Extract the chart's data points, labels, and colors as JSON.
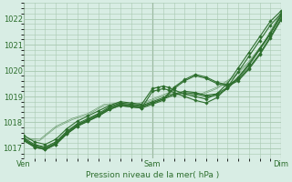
{
  "xlabel": "Pression niveau de la mer( hPa )",
  "bg_color": "#d8ede4",
  "grid_color": "#a8c8b0",
  "line_color": "#2d6e2d",
  "xlim": [
    0,
    48
  ],
  "ylim": [
    1016.6,
    1022.6
  ],
  "yticks": [
    1017,
    1018,
    1019,
    1020,
    1021,
    1022
  ],
  "xtick_labels": [
    "Ven",
    "Sam",
    "Dim"
  ],
  "xtick_positions": [
    0,
    24,
    48
  ],
  "series": [
    {
      "x": [
        0,
        2,
        4,
        6,
        8,
        10,
        12,
        14,
        16,
        18,
        20,
        22,
        24,
        26,
        28,
        30,
        32,
        34,
        36,
        38,
        40,
        42,
        44,
        46,
        48
      ],
      "y": [
        1017.35,
        1017.1,
        1017.0,
        1017.2,
        1017.6,
        1017.9,
        1018.1,
        1018.3,
        1018.55,
        1018.7,
        1018.65,
        1018.6,
        1018.75,
        1018.9,
        1019.05,
        1019.15,
        1019.1,
        1019.0,
        1019.05,
        1019.3,
        1019.7,
        1020.2,
        1020.8,
        1021.4,
        1022.1
      ],
      "lw": 0.8,
      "marker": true
    },
    {
      "x": [
        0,
        2,
        4,
        6,
        8,
        10,
        12,
        14,
        16,
        18,
        20,
        22,
        24,
        26,
        28,
        30,
        32,
        34,
        36,
        38,
        40,
        42,
        44,
        46,
        48
      ],
      "y": [
        1017.4,
        1017.15,
        1017.05,
        1017.25,
        1017.65,
        1017.95,
        1018.15,
        1018.35,
        1018.6,
        1018.75,
        1018.7,
        1018.65,
        1018.8,
        1018.95,
        1019.1,
        1019.2,
        1019.15,
        1019.05,
        1019.1,
        1019.35,
        1019.75,
        1020.25,
        1020.85,
        1021.45,
        1022.15
      ],
      "lw": 0.8,
      "marker": true
    },
    {
      "x": [
        0,
        2,
        4,
        6,
        8,
        10,
        12,
        14,
        16,
        18,
        20,
        22,
        24,
        25,
        26,
        27,
        28,
        30,
        32,
        34,
        36,
        38,
        40,
        42,
        44,
        46,
        48
      ],
      "y": [
        1017.5,
        1017.25,
        1017.15,
        1017.35,
        1017.75,
        1018.05,
        1018.25,
        1018.45,
        1018.65,
        1018.8,
        1018.75,
        1018.7,
        1019.3,
        1019.35,
        1019.4,
        1019.35,
        1019.25,
        1019.1,
        1019.0,
        1018.9,
        1019.1,
        1019.5,
        1020.1,
        1020.7,
        1021.3,
        1021.9,
        1022.3
      ],
      "lw": 0.8,
      "marker": true
    },
    {
      "x": [
        0,
        2,
        4,
        6,
        8,
        10,
        12,
        14,
        16,
        18,
        20,
        22,
        24,
        25,
        26,
        27,
        28,
        30,
        32,
        34,
        36,
        38,
        40,
        42,
        44,
        46,
        48
      ],
      "y": [
        1017.3,
        1017.05,
        1016.95,
        1017.15,
        1017.55,
        1017.85,
        1018.05,
        1018.25,
        1018.5,
        1018.65,
        1018.6,
        1018.55,
        1019.2,
        1019.25,
        1019.3,
        1019.25,
        1019.15,
        1019.0,
        1018.85,
        1018.75,
        1018.95,
        1019.35,
        1019.95,
        1020.55,
        1021.15,
        1021.75,
        1022.2
      ],
      "lw": 0.8,
      "marker": true
    },
    {
      "x": [
        0,
        3,
        6,
        9,
        12,
        15,
        18,
        21,
        24,
        27,
        30,
        33,
        36,
        39,
        42,
        45,
        48
      ],
      "y": [
        1017.35,
        1017.3,
        1017.8,
        1018.1,
        1018.3,
        1018.65,
        1018.7,
        1018.65,
        1018.85,
        1019.1,
        1019.05,
        1019.05,
        1019.3,
        1019.7,
        1020.3,
        1021.1,
        1022.2
      ],
      "lw": 0.5,
      "marker": false
    },
    {
      "x": [
        0,
        3,
        6,
        9,
        12,
        15,
        18,
        21,
        24,
        27,
        30,
        33,
        36,
        39,
        42,
        45,
        48
      ],
      "y": [
        1017.4,
        1017.35,
        1017.85,
        1018.15,
        1018.35,
        1018.7,
        1018.75,
        1018.7,
        1018.9,
        1019.15,
        1019.1,
        1019.1,
        1019.35,
        1019.75,
        1020.35,
        1021.15,
        1022.25
      ],
      "lw": 0.5,
      "marker": false
    },
    {
      "x": [
        0,
        2,
        4,
        6,
        8,
        10,
        12,
        14,
        16,
        18,
        20,
        22,
        24,
        26,
        28,
        30,
        32,
        34,
        36,
        38,
        40,
        42,
        44,
        46,
        48
      ],
      "y": [
        1017.35,
        1017.1,
        1017.0,
        1017.2,
        1017.6,
        1017.9,
        1018.1,
        1018.3,
        1018.55,
        1018.7,
        1018.65,
        1018.6,
        1018.75,
        1018.9,
        1019.35,
        1019.65,
        1019.85,
        1019.75,
        1019.55,
        1019.45,
        1019.65,
        1020.1,
        1020.65,
        1021.3,
        1022.0
      ],
      "lw": 0.8,
      "marker": true
    },
    {
      "x": [
        0,
        2,
        4,
        6,
        8,
        10,
        12,
        14,
        16,
        18,
        20,
        22,
        24,
        26,
        28,
        30,
        32,
        34,
        36,
        38,
        40,
        42,
        44,
        46,
        48
      ],
      "y": [
        1017.3,
        1017.05,
        1016.95,
        1017.15,
        1017.55,
        1017.85,
        1018.05,
        1018.25,
        1018.5,
        1018.65,
        1018.6,
        1018.55,
        1018.7,
        1018.85,
        1019.3,
        1019.6,
        1019.8,
        1019.7,
        1019.5,
        1019.4,
        1019.6,
        1020.05,
        1020.6,
        1021.25,
        1021.95
      ],
      "lw": 0.8,
      "marker": true
    }
  ]
}
